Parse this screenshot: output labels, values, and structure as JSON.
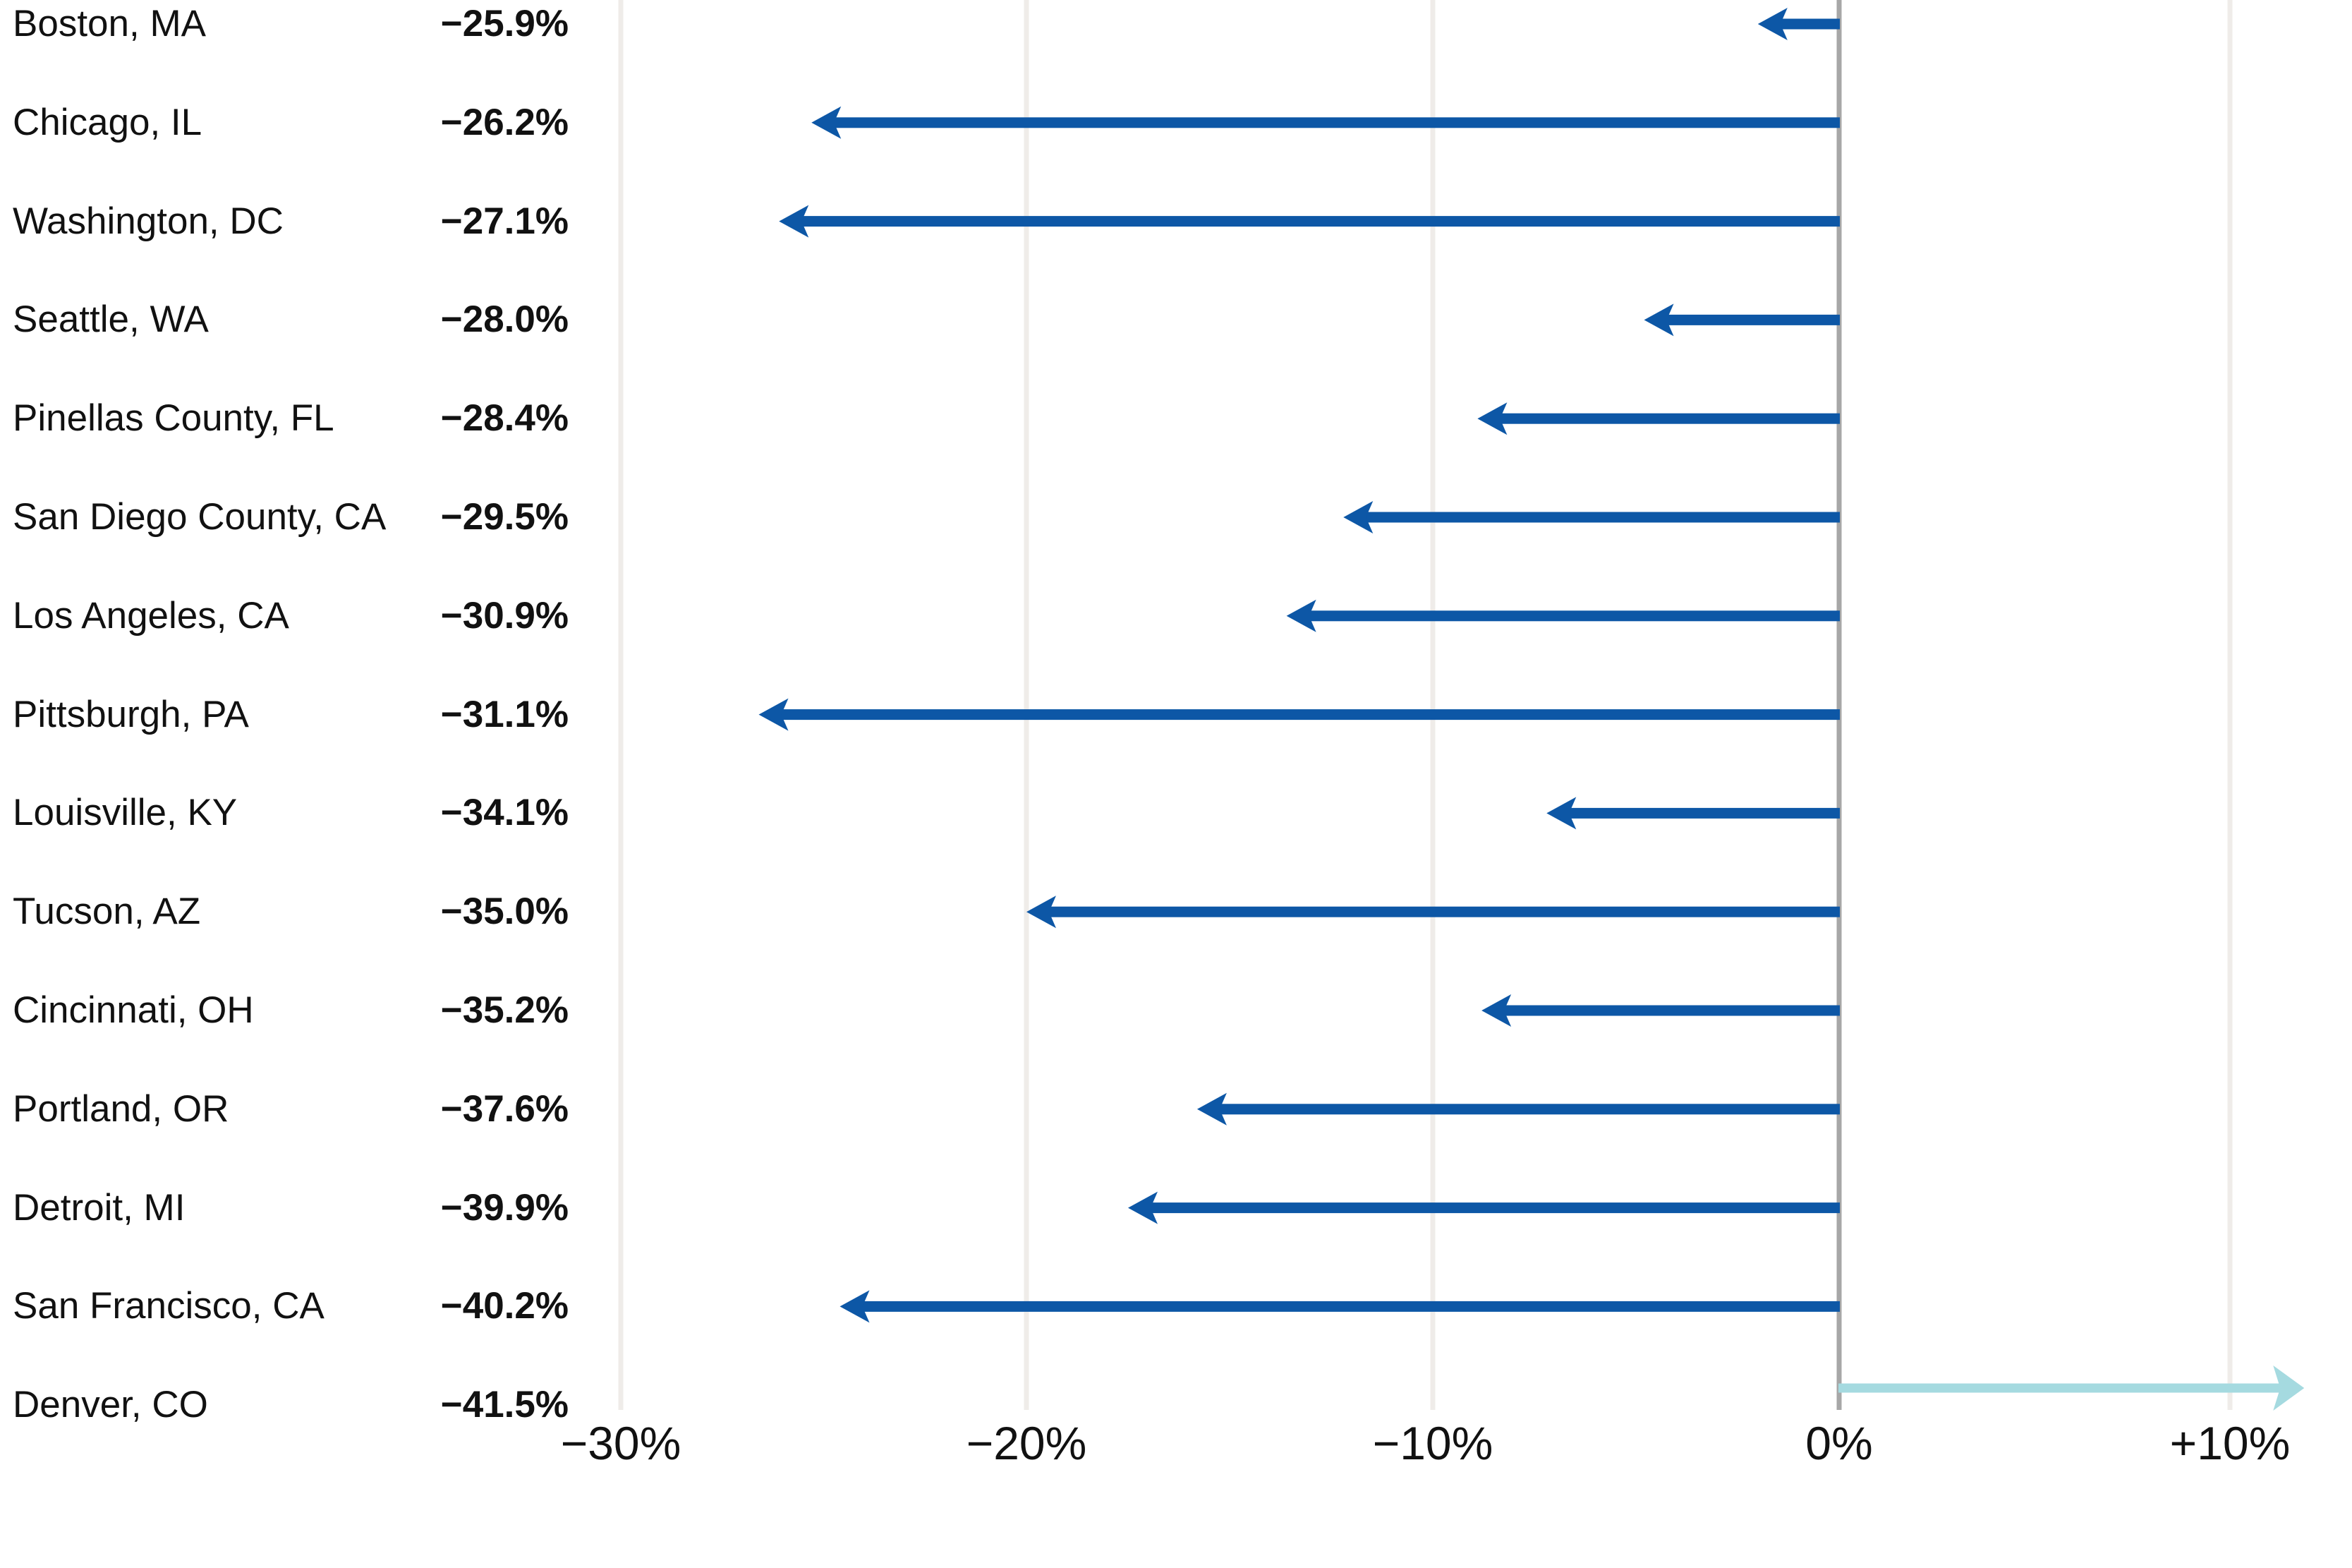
{
  "page": {
    "background_color": "#ffffff"
  },
  "chart_data": {
    "type": "bar",
    "variant": "horizontal-arrow-lollipop",
    "title": "",
    "legend": "none",
    "grid": "vertical-gridlines-on",
    "rows": [
      {
        "city": "Boston, MA",
        "value_label": "−25.9%",
        "value": -25.9,
        "arrow_value": -2.0
      },
      {
        "city": "Chicago, IL",
        "value_label": "−26.2%",
        "value": -26.2,
        "arrow_value": -25.3
      },
      {
        "city": "Washington, DC",
        "value_label": "−27.1%",
        "value": -27.1,
        "arrow_value": -26.1
      },
      {
        "city": "Seattle, WA",
        "value_label": "−28.0%",
        "value": -28.0,
        "arrow_value": -4.8
      },
      {
        "city": "Pinellas County, FL",
        "value_label": "−28.4%",
        "value": -28.4,
        "arrow_value": -8.9
      },
      {
        "city": "San Diego County, CA",
        "value_label": "−29.5%",
        "value": -29.5,
        "arrow_value": -12.2
      },
      {
        "city": "Los Angeles, CA",
        "value_label": "−30.9%",
        "value": -30.9,
        "arrow_value": -13.6
      },
      {
        "city": "Pittsburgh, PA",
        "value_label": "−31.1%",
        "value": -31.1,
        "arrow_value": -26.6
      },
      {
        "city": "Louisville, KY",
        "value_label": "−34.1%",
        "value": -34.1,
        "arrow_value": -7.2
      },
      {
        "city": "Tucson, AZ",
        "value_label": "−35.0%",
        "value": -35.0,
        "arrow_value": -20.0
      },
      {
        "city": "Cincinnati, OH",
        "value_label": "−35.2%",
        "value": -35.2,
        "arrow_value": -8.8
      },
      {
        "city": "Portland, OR",
        "value_label": "−37.6%",
        "value": -37.6,
        "arrow_value": -15.8
      },
      {
        "city": "Detroit, MI",
        "value_label": "−39.9%",
        "value": -39.9,
        "arrow_value": -17.5
      },
      {
        "city": "San Francisco, CA",
        "value_label": "−40.2%",
        "value": -40.2,
        "arrow_value": -24.6
      },
      {
        "city": "Denver, CO",
        "value_label": "−41.5%",
        "value": -41.5,
        "arrow_value": 11.9
      }
    ],
    "axis": {
      "orientation": "x-bottom",
      "tick_labels": [
        "−30%",
        "−20%",
        "−10%",
        "0%",
        "+10%"
      ],
      "tick_values": [
        -30,
        -20,
        -10,
        0,
        10
      ],
      "zero_baseline": true
    },
    "colors": {
      "arrow_negative": "#0D57A6",
      "arrow_positive": "#A5DAE0",
      "gridline": "#EFECE9",
      "zero_line": "#A7A7A7",
      "text": "#111111"
    }
  }
}
